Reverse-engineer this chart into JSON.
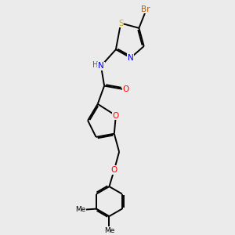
{
  "background_color": "#ebebeb",
  "bond_color": "#000000",
  "atom_colors": {
    "Br": "#b85c00",
    "S": "#ccaa00",
    "N": "#0000ff",
    "O": "#ff0000",
    "H": "#008080",
    "C": "#000000"
  }
}
